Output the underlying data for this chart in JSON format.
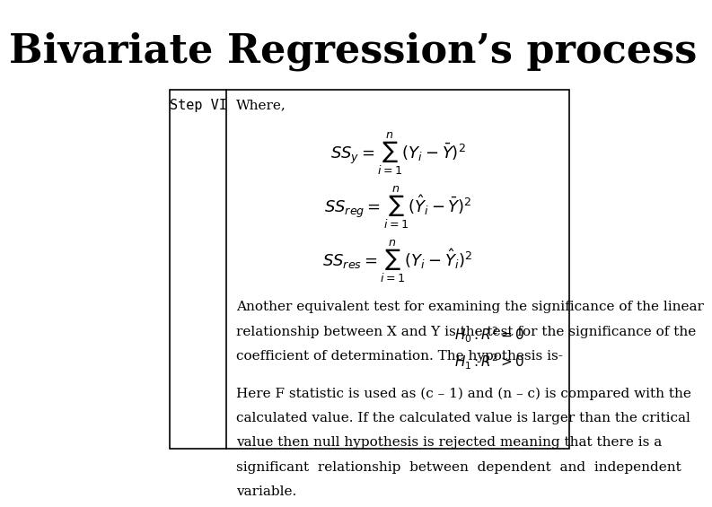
{
  "title": "Bivariate Regression’s process",
  "title_fontsize": 32,
  "title_fontfamily": "serif",
  "title_fontweight": "bold",
  "bg_color": "#ffffff",
  "box_color": "#ffffff",
  "box_border": "#000000",
  "step_label": "Step VI",
  "where_label": "Where,",
  "formula1": "$SS_{y} = \\sum_{i=1}^{n}(Y_i - \\bar{Y})^2$",
  "formula2": "$SS_{reg} = \\sum_{i=1}^{n}(\\hat{Y}_i - \\bar{Y})^2$",
  "formula3": "$SS_{res} = \\sum_{i=1}^{n}(Y_i - \\hat{Y}_i)^2$",
  "text_body": "Another equivalent test for examining the significance of the linear\nrelationship between X and Y is the test for the significance of the\ncoefficient of determination. The hypothesis is-",
  "hyp1": "$H_0: R^2 = 0$",
  "hyp2": "$H_1: R^2 > 0$",
  "text_body2": "Here F statistic is used as (c – 1) and (n – c) is compared with the\ncalculated value. If the calculated value is larger than the critical\nvalue then null hypothesis is rejected meaning that there is a\nsignificant  relationship  between  dependent  and  independent\nvariable.",
  "body_fontsize": 11,
  "formula_fontsize": 13,
  "step_fontsize": 11
}
